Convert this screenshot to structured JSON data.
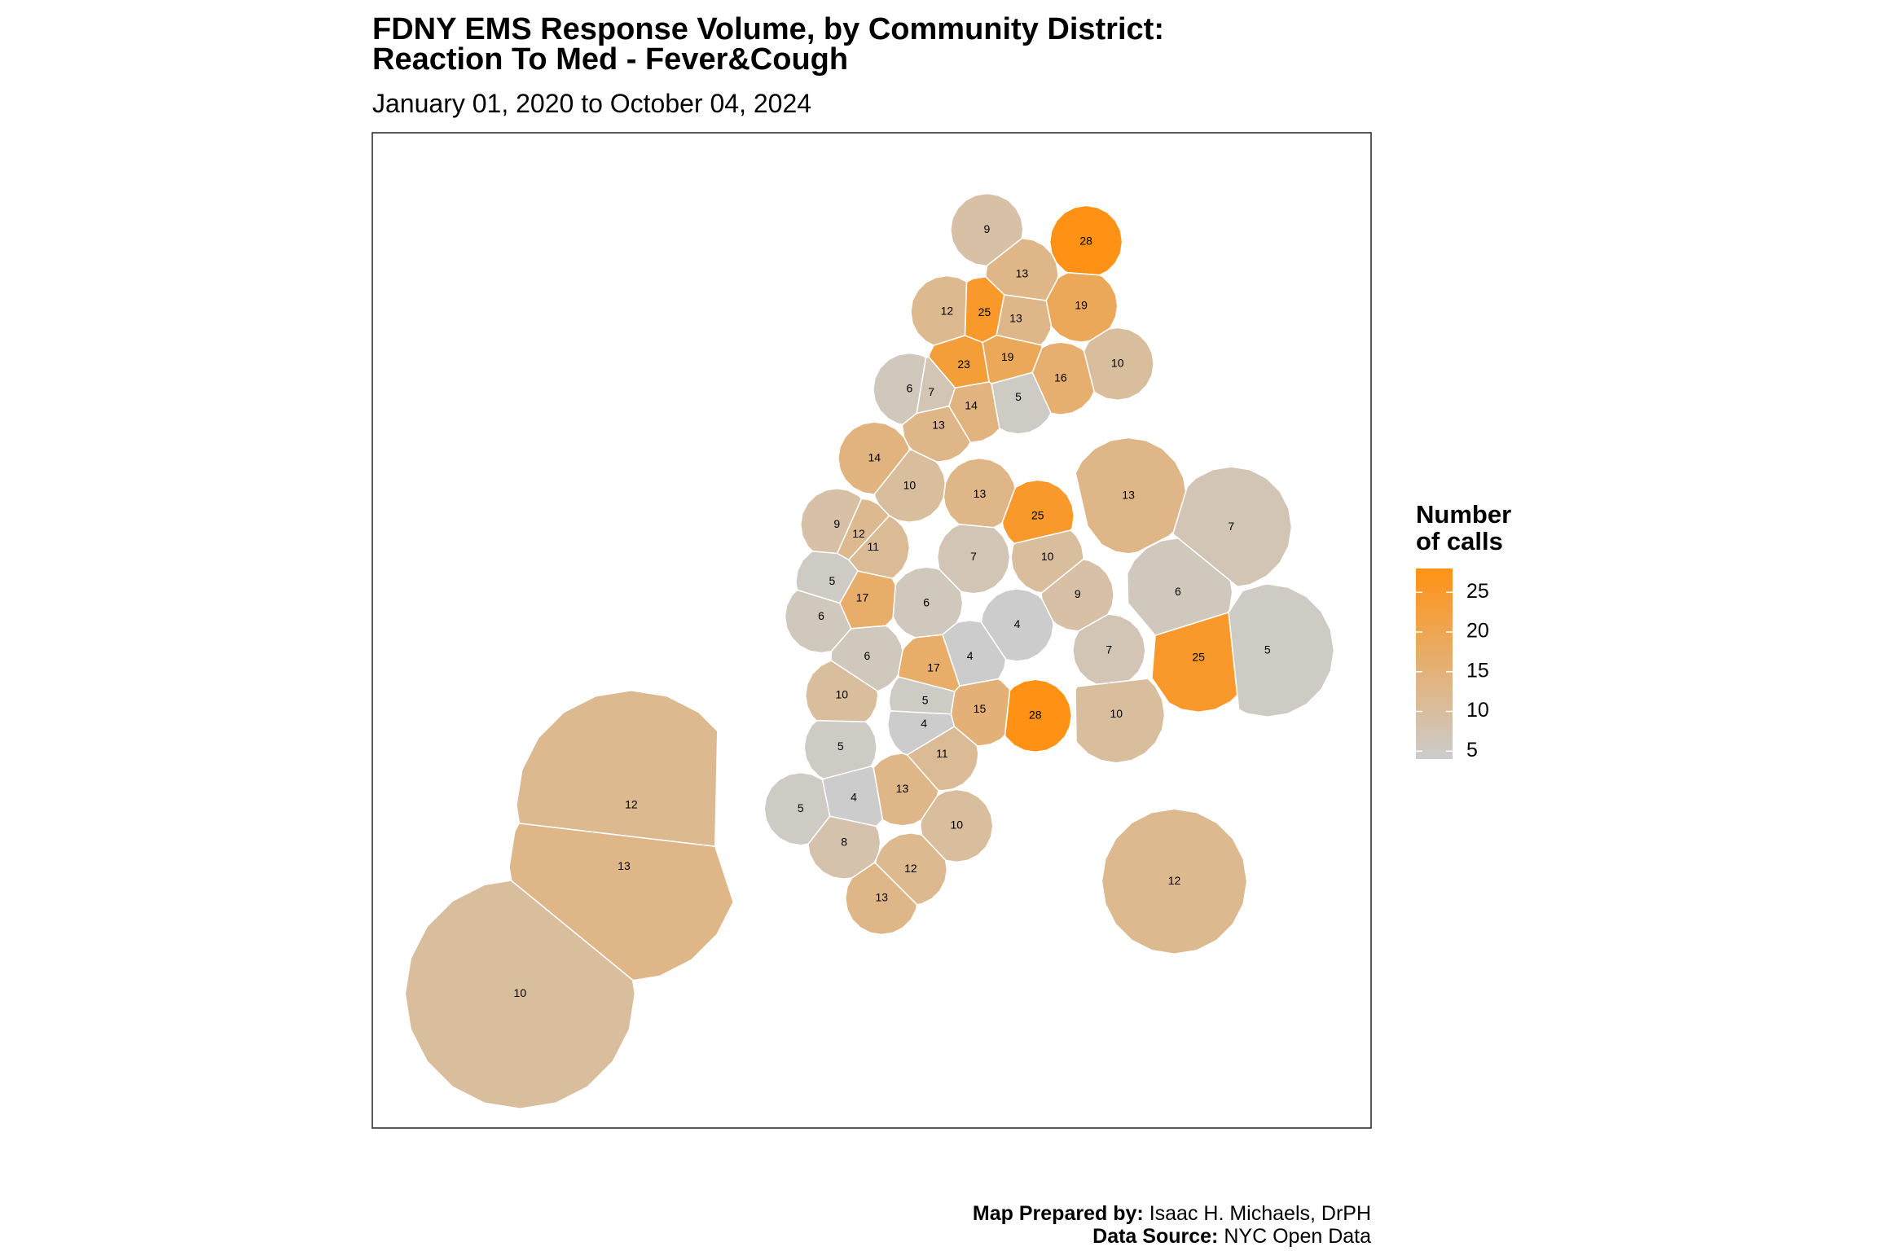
{
  "title": [
    "FDNY EMS Response Volume, by Community District:",
    "Reaction To Med - Fever&Cough"
  ],
  "subtitle": "January 01, 2020 to October 04, 2024",
  "map": {
    "type": "choropleth",
    "values": [
      9,
      28,
      13,
      19,
      12,
      25,
      13,
      23,
      19,
      16,
      10,
      6,
      7,
      5,
      14,
      13,
      14,
      10,
      13,
      13,
      25,
      7,
      9,
      12,
      11,
      7,
      10,
      5,
      6,
      17,
      9,
      6,
      6,
      4,
      7,
      25,
      5,
      6,
      4,
      17,
      10,
      5,
      15,
      28,
      10,
      4,
      11,
      5,
      13,
      4,
      5,
      12,
      10,
      8,
      13,
      12,
      13,
      12,
      10
    ]
  },
  "legend": {
    "title": [
      "Number",
      "of calls"
    ],
    "lim": [
      4,
      28
    ],
    "ticks": [
      5,
      10,
      15,
      20,
      25
    ],
    "colors": [
      "#cccccc",
      "#ff9214"
    ]
  },
  "footer": [
    {
      "label": "Map Prepared by:",
      "text": "Isaac H. Michaels, DrPH"
    },
    {
      "label": "Data Source:",
      "text": "NYC Open Data"
    }
  ]
}
